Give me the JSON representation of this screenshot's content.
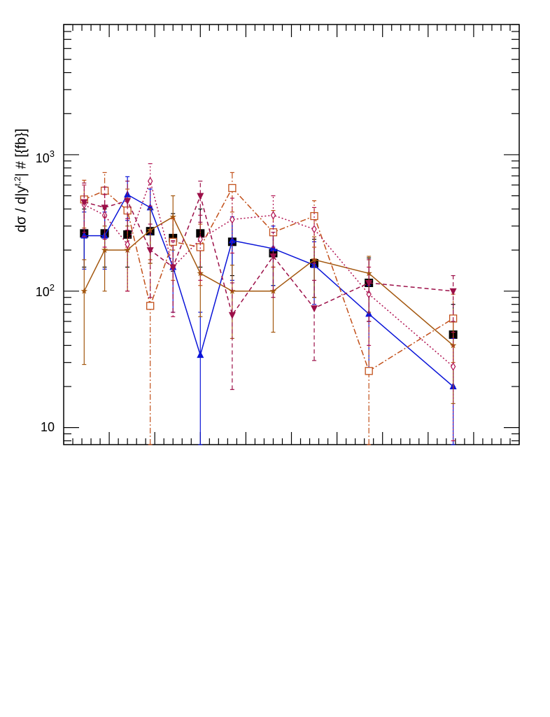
{
  "chart_data": {
    "type": "scatter",
    "ylabel": "dσ / d|y^{t,2}| # [{fb}]",
    "yscale": "log",
    "ylim": [
      7.5,
      9000
    ],
    "xlim": [
      0,
      10
    ],
    "x_tick_labels": [],
    "y_tick_labels": [
      "10",
      "10^2",
      "10^3"
    ],
    "grid": false,
    "legend": "none",
    "colors": {
      "black": "#000000",
      "blue": "#0a14d8",
      "brown": "#a3570e",
      "orange_dashdot": "#c2501a",
      "magenta_dotted": "#b01050",
      "maroon_dashed": "#9c0f48"
    },
    "series": [
      {
        "marker": "square-filled",
        "line": "none",
        "color": "#000000",
        "points": [
          {
            "x": 0.45,
            "y": 265,
            "lo": 150,
            "hi": 400
          },
          {
            "x": 0.9,
            "y": 265,
            "lo": 150,
            "hi": 400
          },
          {
            "x": 1.4,
            "y": 260,
            "lo": 150,
            "hi": 390
          },
          {
            "x": 1.9,
            "y": 275,
            "lo": 160,
            "hi": 410
          },
          {
            "x": 2.4,
            "y": 245,
            "lo": 140,
            "hi": 370
          },
          {
            "x": 3.0,
            "y": 265,
            "lo": 150,
            "hi": 400
          },
          {
            "x": 3.7,
            "y": 230,
            "lo": 130,
            "hi": 340
          },
          {
            "x": 4.6,
            "y": 190,
            "lo": 110,
            "hi": 280
          },
          {
            "x": 5.5,
            "y": 160,
            "lo": 90,
            "hi": 240
          },
          {
            "x": 6.7,
            "y": 115,
            "lo": 60,
            "hi": 175
          },
          {
            "x": 8.55,
            "y": 48,
            "lo": 20,
            "hi": 80
          }
        ]
      },
      {
        "marker": "triangle-up-filled",
        "line": "solid",
        "color": "#0a14d8",
        "points": [
          {
            "x": 0.45,
            "y": 255,
            "lo": 145,
            "hi": 380
          },
          {
            "x": 0.9,
            "y": 255,
            "lo": 145,
            "hi": 380
          },
          {
            "x": 1.4,
            "y": 510,
            "lo": 330,
            "hi": 690
          },
          {
            "x": 1.9,
            "y": 410,
            "lo": 260,
            "hi": 560
          },
          {
            "x": 2.4,
            "y": 150,
            "lo": 70,
            "hi": 230
          },
          {
            "x": 3.0,
            "y": 34,
            "lo": 7.5,
            "hi": 70
          },
          {
            "x": 3.7,
            "y": 235,
            "lo": 120,
            "hi": 350
          },
          {
            "x": 4.6,
            "y": 205,
            "lo": 110,
            "hi": 300
          },
          {
            "x": 5.5,
            "y": 155,
            "lo": 80,
            "hi": 230
          },
          {
            "x": 6.7,
            "y": 68,
            "lo": 25,
            "hi": 110
          },
          {
            "x": 8.55,
            "y": 20,
            "lo": 7.5,
            "hi": 45
          }
        ]
      },
      {
        "marker": "star",
        "line": "solid",
        "color": "#a3570e",
        "points": [
          {
            "x": 0.45,
            "y": 100,
            "lo": 29,
            "hi": 170
          },
          {
            "x": 0.9,
            "y": 200,
            "lo": 100,
            "hi": 300
          },
          {
            "x": 1.4,
            "y": 200,
            "lo": 100,
            "hi": 300
          },
          {
            "x": 1.9,
            "y": 280,
            "lo": 160,
            "hi": 400
          },
          {
            "x": 2.4,
            "y": 350,
            "lo": 200,
            "hi": 500
          },
          {
            "x": 3.0,
            "y": 135,
            "lo": 65,
            "hi": 205
          },
          {
            "x": 3.7,
            "y": 100,
            "lo": 45,
            "hi": 155
          },
          {
            "x": 4.6,
            "y": 100,
            "lo": 50,
            "hi": 150
          },
          {
            "x": 5.5,
            "y": 170,
            "lo": 90,
            "hi": 250
          },
          {
            "x": 6.7,
            "y": 135,
            "lo": 70,
            "hi": 180
          },
          {
            "x": 8.55,
            "y": 40,
            "lo": 15,
            "hi": 65
          }
        ]
      },
      {
        "marker": "square-open",
        "line": "dash-dot",
        "color": "#c2501a",
        "points": [
          {
            "x": 0.45,
            "y": 470,
            "lo": 290,
            "hi": 650
          },
          {
            "x": 0.9,
            "y": 545,
            "lo": 350,
            "hi": 740
          },
          {
            "x": 1.4,
            "y": 390,
            "lo": 210,
            "hi": 560
          },
          {
            "x": 1.9,
            "y": 78,
            "lo": 7.5,
            "hi": 170
          },
          {
            "x": 2.4,
            "y": 230,
            "lo": 120,
            "hi": 340
          },
          {
            "x": 3.0,
            "y": 210,
            "lo": 110,
            "hi": 310
          },
          {
            "x": 3.7,
            "y": 570,
            "lo": 380,
            "hi": 740
          },
          {
            "x": 4.6,
            "y": 270,
            "lo": 150,
            "hi": 390
          },
          {
            "x": 5.5,
            "y": 355,
            "lo": 210,
            "hi": 460
          },
          {
            "x": 6.7,
            "y": 26,
            "lo": 7.5,
            "hi": 60
          },
          {
            "x": 8.55,
            "y": 63,
            "lo": 30,
            "hi": 95
          }
        ]
      },
      {
        "marker": "diamond-open",
        "line": "dotted",
        "color": "#b01050",
        "points": [
          {
            "x": 0.45,
            "y": 430,
            "lo": 250,
            "hi": 600
          },
          {
            "x": 0.9,
            "y": 360,
            "lo": 210,
            "hi": 510
          },
          {
            "x": 1.4,
            "y": 220,
            "lo": 100,
            "hi": 340
          },
          {
            "x": 1.9,
            "y": 640,
            "lo": 420,
            "hi": 860
          },
          {
            "x": 2.4,
            "y": 150,
            "lo": 65,
            "hi": 235
          },
          {
            "x": 3.0,
            "y": 240,
            "lo": 120,
            "hi": 360
          },
          {
            "x": 3.7,
            "y": 335,
            "lo": 190,
            "hi": 480
          },
          {
            "x": 4.6,
            "y": 360,
            "lo": 210,
            "hi": 500
          },
          {
            "x": 5.5,
            "y": 285,
            "lo": 160,
            "hi": 410
          },
          {
            "x": 6.7,
            "y": 95,
            "lo": 40,
            "hi": 150
          },
          {
            "x": 8.55,
            "y": 28,
            "lo": 8,
            "hi": 50
          }
        ]
      },
      {
        "marker": "triangle-down-filled",
        "line": "dashed",
        "color": "#9c0f48",
        "points": [
          {
            "x": 0.45,
            "y": 450,
            "lo": 270,
            "hi": 620
          },
          {
            "x": 0.9,
            "y": 410,
            "lo": 240,
            "hi": 580
          },
          {
            "x": 1.4,
            "y": 460,
            "lo": 280,
            "hi": 640
          },
          {
            "x": 1.9,
            "y": 200,
            "lo": 90,
            "hi": 310
          },
          {
            "x": 2.4,
            "y": 150,
            "lo": 70,
            "hi": 230
          },
          {
            "x": 3.0,
            "y": 500,
            "lo": 320,
            "hi": 640
          },
          {
            "x": 3.7,
            "y": 67,
            "lo": 19,
            "hi": 115
          },
          {
            "x": 4.6,
            "y": 180,
            "lo": 90,
            "hi": 270
          },
          {
            "x": 5.5,
            "y": 75,
            "lo": 31,
            "hi": 120
          },
          {
            "x": 6.7,
            "y": 115,
            "lo": 60,
            "hi": 170
          },
          {
            "x": 8.55,
            "y": 100,
            "lo": 60,
            "hi": 130
          }
        ]
      }
    ]
  }
}
